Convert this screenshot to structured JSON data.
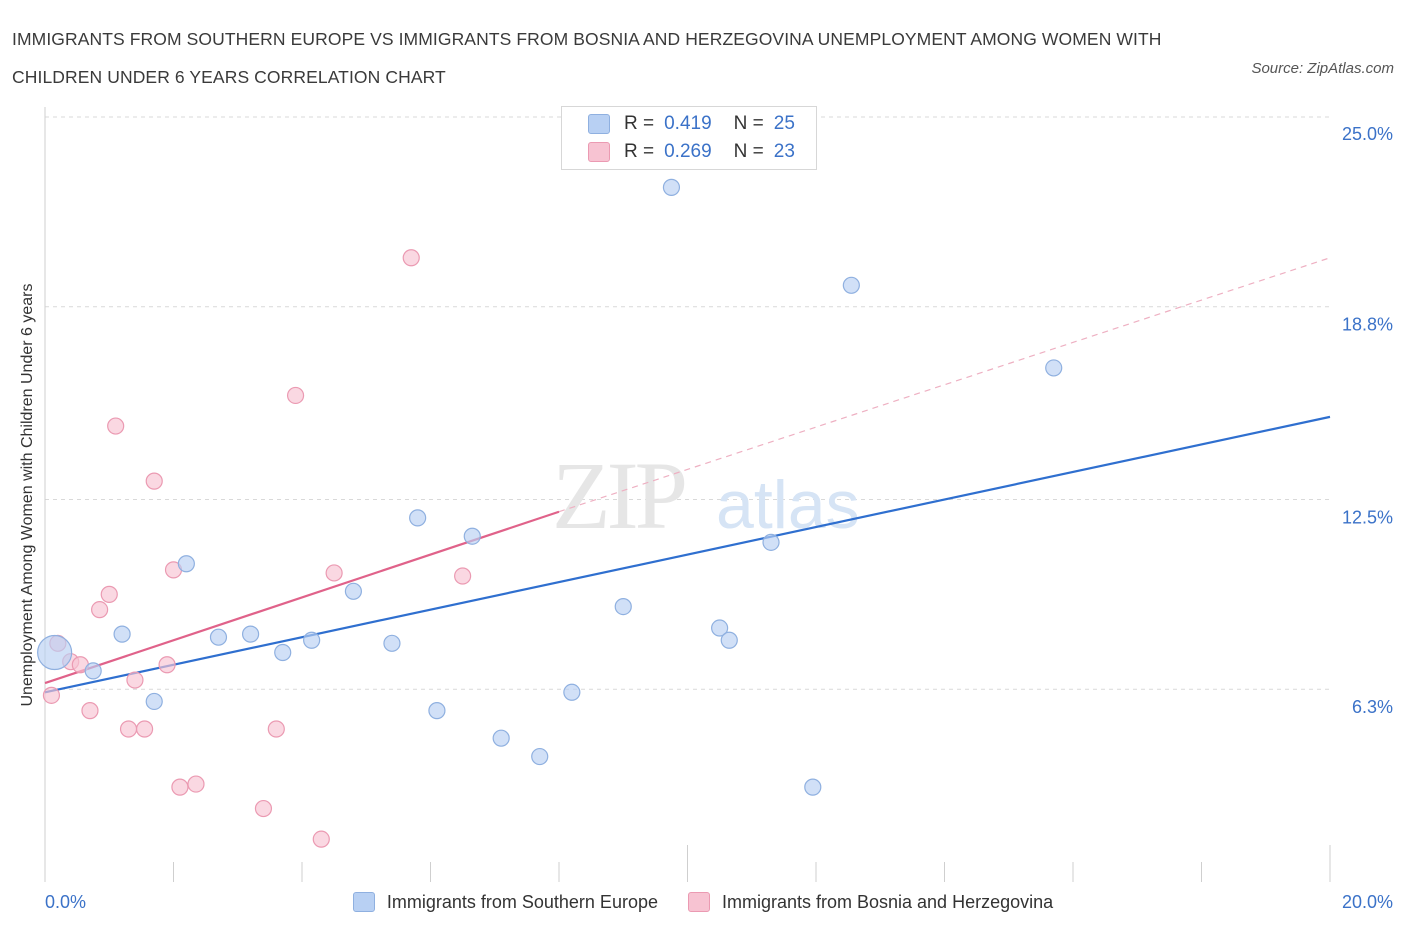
{
  "title": "IMMIGRANTS FROM SOUTHERN EUROPE VS IMMIGRANTS FROM BOSNIA AND HERZEGOVINA UNEMPLOYMENT AMONG WOMEN WITH CHILDREN UNDER 6 YEARS CORRELATION CHART",
  "source": "Source: ZipAtlas.com",
  "watermark": {
    "zip": "ZIP",
    "atlas": "atlas"
  },
  "legend_top": [
    {
      "r_label": "R =",
      "r_value": "0.419",
      "n_label": "N =",
      "n_value": "25"
    },
    {
      "r_label": "R =",
      "r_value": "0.269",
      "n_label": "N =",
      "n_value": "23"
    }
  ],
  "colors": {
    "blue_fill": "#b8d0f3",
    "blue_stroke": "#8fb0e0",
    "blue_line": "#2f6fcf",
    "pink_fill": "#f7c3d2",
    "pink_stroke": "#eb9ab2",
    "pink_line": "#e0628a",
    "axis_text": "#3b72c8",
    "grid": "#d9d9d9"
  },
  "chart_data": {
    "type": "scatter",
    "title": "Immigrants from Southern Europe vs Immigrants from Bosnia and Herzegovina Unemployment Among Women with Children Under 6 years Correlation Chart",
    "xlabel": "",
    "ylabel": "Unemployment Among Women with Children Under 6 years",
    "xlim": [
      0,
      20
    ],
    "ylim": [
      0,
      25
    ],
    "x_tick_labels": [
      "0.0%",
      "20.0%"
    ],
    "y_ticks": [
      6.3,
      12.5,
      18.8,
      25.0
    ],
    "y_tick_labels": [
      "6.3%",
      "12.5%",
      "18.8%",
      "25.0%"
    ],
    "series": [
      {
        "name": "Immigrants from Southern Europe",
        "color": "blue",
        "points": [
          {
            "x": 0.15,
            "y": 7.5,
            "size": "large"
          },
          {
            "x": 0.75,
            "y": 6.9
          },
          {
            "x": 1.2,
            "y": 8.1
          },
          {
            "x": 1.7,
            "y": 5.9
          },
          {
            "x": 2.2,
            "y": 10.4
          },
          {
            "x": 2.7,
            "y": 8.0
          },
          {
            "x": 3.2,
            "y": 8.1
          },
          {
            "x": 3.7,
            "y": 7.5
          },
          {
            "x": 4.15,
            "y": 7.9
          },
          {
            "x": 4.8,
            "y": 9.5
          },
          {
            "x": 5.4,
            "y": 7.8
          },
          {
            "x": 5.8,
            "y": 11.9
          },
          {
            "x": 6.1,
            "y": 5.6
          },
          {
            "x": 6.65,
            "y": 11.3
          },
          {
            "x": 7.1,
            "y": 4.7
          },
          {
            "x": 7.7,
            "y": 4.1
          },
          {
            "x": 8.2,
            "y": 6.2
          },
          {
            "x": 9.0,
            "y": 9.0
          },
          {
            "x": 9.75,
            "y": 22.7
          },
          {
            "x": 10.5,
            "y": 8.3
          },
          {
            "x": 10.65,
            "y": 7.9
          },
          {
            "x": 11.3,
            "y": 11.1
          },
          {
            "x": 11.95,
            "y": 3.1
          },
          {
            "x": 12.55,
            "y": 19.5
          },
          {
            "x": 15.7,
            "y": 16.8
          }
        ],
        "trend": {
          "x0": 0,
          "y0": 6.2,
          "x1": 20,
          "y1": 15.2
        }
      },
      {
        "name": "Immigrants from Bosnia and Herzegovina",
        "color": "pink",
        "points": [
          {
            "x": 0.1,
            "y": 6.1
          },
          {
            "x": 0.2,
            "y": 7.8
          },
          {
            "x": 0.4,
            "y": 7.2
          },
          {
            "x": 0.55,
            "y": 7.1
          },
          {
            "x": 0.7,
            "y": 5.6
          },
          {
            "x": 0.85,
            "y": 8.9
          },
          {
            "x": 1.0,
            "y": 9.4
          },
          {
            "x": 1.1,
            "y": 14.9
          },
          {
            "x": 1.3,
            "y": 5.0
          },
          {
            "x": 1.4,
            "y": 6.6
          },
          {
            "x": 1.55,
            "y": 5.0
          },
          {
            "x": 1.7,
            "y": 13.1
          },
          {
            "x": 1.9,
            "y": 7.1
          },
          {
            "x": 2.0,
            "y": 10.2
          },
          {
            "x": 2.1,
            "y": 3.1
          },
          {
            "x": 2.35,
            "y": 3.2
          },
          {
            "x": 3.4,
            "y": 2.4
          },
          {
            "x": 3.6,
            "y": 5.0
          },
          {
            "x": 3.9,
            "y": 15.9
          },
          {
            "x": 4.3,
            "y": 1.4
          },
          {
            "x": 4.5,
            "y": 10.1
          },
          {
            "x": 5.7,
            "y": 20.4
          },
          {
            "x": 6.5,
            "y": 10.0
          }
        ],
        "trend": {
          "x0": 0,
          "y0": 6.5,
          "x1": 8,
          "y1": 12.1
        },
        "trend_extended": {
          "x0": 8,
          "y0": 12.1,
          "x1": 20,
          "y1": 20.4
        }
      }
    ]
  }
}
